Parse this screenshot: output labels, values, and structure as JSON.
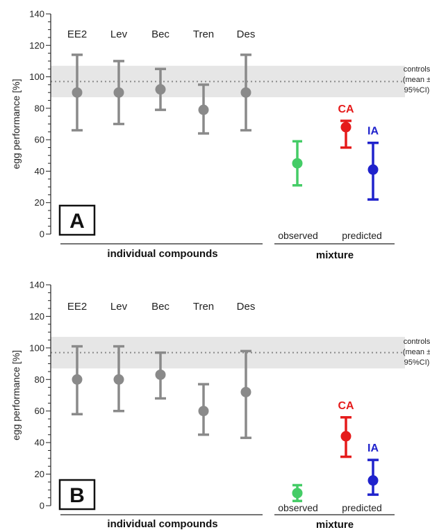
{
  "chart_data": [
    {
      "type": "scatter",
      "panel": "A",
      "ylabel": "egg performance [%]",
      "ylim": [
        0,
        140
      ],
      "yticks": [
        "0",
        "20",
        "40",
        "60",
        "80",
        "100",
        "120",
        "140"
      ],
      "compounds": [
        "EE2",
        "Lev",
        "Bec",
        "Tren",
        "Des"
      ],
      "individual": [
        {
          "compound": "EE2",
          "mean": 90,
          "low": 66,
          "high": 114
        },
        {
          "compound": "Lev",
          "mean": 90,
          "low": 70,
          "high": 110
        },
        {
          "compound": "Bec",
          "mean": 92,
          "low": 79,
          "high": 105
        },
        {
          "compound": "Tren",
          "mean": 79,
          "low": 64,
          "high": 95
        },
        {
          "compound": "Des",
          "mean": 90,
          "low": 66,
          "high": 114
        }
      ],
      "controls": {
        "mean": 97,
        "low": 87,
        "high": 107,
        "label_lines": [
          "controls",
          "(mean ±",
          "95%CI)"
        ]
      },
      "observed": {
        "mean": 45,
        "low": 31,
        "high": 59
      },
      "predicted": [
        {
          "label": "CA",
          "mean": 68,
          "low": 55,
          "high": 72
        },
        {
          "label": "IA",
          "mean": 41,
          "low": 22,
          "high": 58
        }
      ],
      "group_labels": {
        "individual": "individual compounds",
        "mixture": "mixture",
        "observed": "observed",
        "predicted": "predicted"
      }
    },
    {
      "type": "scatter",
      "panel": "B",
      "ylabel": "egg performance [%]",
      "ylim": [
        0,
        140
      ],
      "yticks": [
        "0",
        "20",
        "40",
        "60",
        "80",
        "100",
        "120",
        "140"
      ],
      "compounds": [
        "EE2",
        "Lev",
        "Bec",
        "Tren",
        "Des"
      ],
      "individual": [
        {
          "compound": "EE2",
          "mean": 80,
          "low": 58,
          "high": 101
        },
        {
          "compound": "Lev",
          "mean": 80,
          "low": 60,
          "high": 101
        },
        {
          "compound": "Bec",
          "mean": 83,
          "low": 68,
          "high": 97
        },
        {
          "compound": "Tren",
          "mean": 60,
          "low": 45,
          "high": 77
        },
        {
          "compound": "Des",
          "mean": 72,
          "low": 43,
          "high": 98
        }
      ],
      "controls": {
        "mean": 97,
        "low": 87,
        "high": 107,
        "label_lines": [
          "controls",
          "(mean ±",
          "95%CI)"
        ]
      },
      "observed": {
        "mean": 8,
        "low": 3,
        "high": 13
      },
      "predicted": [
        {
          "label": "CA",
          "mean": 44,
          "low": 31,
          "high": 56
        },
        {
          "label": "IA",
          "mean": 16,
          "low": 7,
          "high": 29
        }
      ],
      "group_labels": {
        "individual": "individual compounds",
        "mixture": "mixture",
        "observed": "observed",
        "predicted": "predicted"
      }
    }
  ],
  "colors": {
    "individual": "#8a8a8a",
    "observed": "#44cc66",
    "ca": "#e51b1b",
    "ia": "#1f22cc",
    "control_band": "#e6e6e6",
    "control_line": "#8a8a8a"
  }
}
